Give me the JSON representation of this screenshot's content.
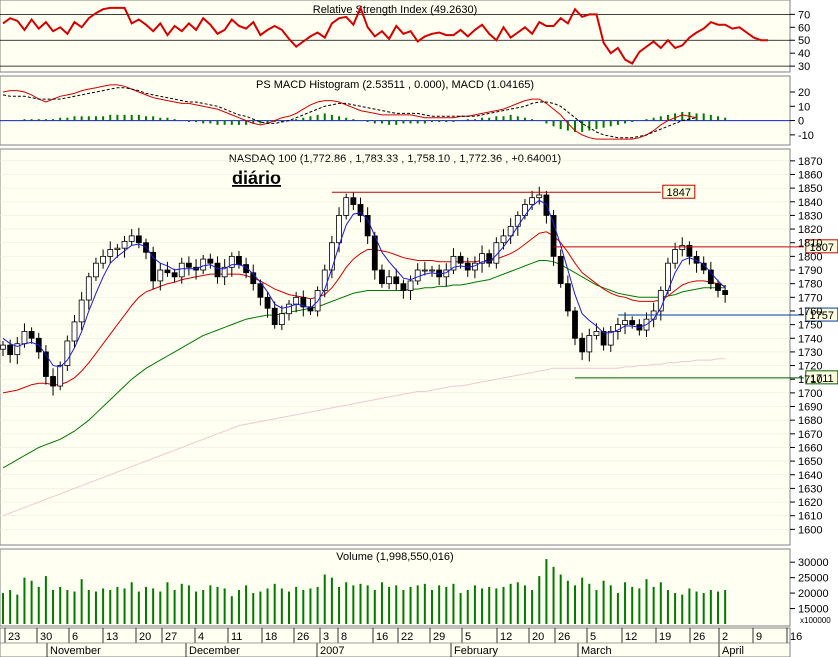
{
  "chart_data": [
    {
      "type": "line",
      "panel": "rsi",
      "title": "Relative Strength Index (49.2630)",
      "yticks": [
        30,
        40,
        50,
        60,
        70
      ],
      "ylim": [
        27,
        78
      ],
      "ref_lines": [
        30,
        50,
        70
      ],
      "series": [
        {
          "values": [
            63,
            67,
            65,
            58,
            66,
            59,
            64,
            57,
            60,
            55,
            64,
            60,
            67,
            71,
            74,
            75,
            75,
            75,
            63,
            66,
            62,
            57,
            63,
            54,
            61,
            57,
            63,
            58,
            67,
            62,
            55,
            58,
            66,
            61,
            59,
            64,
            54,
            58,
            61,
            58,
            51,
            45,
            49,
            53,
            56,
            52,
            63,
            67,
            68,
            62,
            75,
            60,
            53,
            57,
            51,
            61,
            55,
            57,
            49,
            53,
            55,
            56,
            54,
            54,
            58,
            53,
            58,
            62,
            55,
            50,
            60,
            52,
            56,
            60,
            55,
            64,
            61,
            61,
            67,
            63,
            74,
            68,
            70,
            70,
            48,
            40,
            44,
            35,
            32,
            41,
            45,
            49,
            44,
            50,
            44,
            46,
            52,
            56,
            59,
            64,
            62,
            62,
            59,
            60,
            56,
            52,
            50,
            50
          ]
        }
      ]
    },
    {
      "type": "line",
      "panel": "macd",
      "title": "PS MACD Histogram (2.53511 , 0.000), MACD (1.04165)",
      "yticks": [
        -10,
        0,
        10,
        20
      ],
      "ylim": [
        -15,
        27
      ],
      "series": [
        {
          "values": [
            20,
            21,
            21,
            20,
            18,
            15,
            13,
            15,
            17,
            18,
            19,
            21,
            22,
            23,
            24,
            25,
            25,
            24,
            22,
            20,
            18,
            16,
            15,
            14,
            13,
            12,
            12,
            11,
            10,
            9,
            8,
            6,
            4,
            2,
            0,
            -2,
            -3,
            -2,
            0,
            2,
            3,
            5,
            8,
            11,
            13,
            14,
            14,
            13,
            11,
            9,
            7,
            6,
            5,
            4,
            4,
            4,
            4,
            4,
            3,
            2,
            2,
            2,
            2,
            2,
            3,
            3,
            4,
            5,
            6,
            7,
            8,
            10,
            12,
            14,
            15,
            15,
            12,
            8,
            4,
            -2,
            -7,
            -10,
            -12,
            -13,
            -13,
            -13,
            -13,
            -13,
            -13,
            -12,
            -10,
            -7,
            -3,
            0,
            2,
            4,
            3,
            2
          ]
        },
        {
          "values": [
            18,
            17,
            17,
            17,
            16,
            15,
            15,
            15,
            15,
            16,
            17,
            18,
            19,
            20,
            21,
            22,
            23,
            23,
            22,
            21,
            19,
            18,
            17,
            16,
            15,
            14,
            13,
            13,
            12,
            11,
            10,
            8,
            6,
            4,
            3,
            1,
            -1,
            -2,
            -2,
            -1,
            0,
            2,
            4,
            6,
            8,
            10,
            11,
            12,
            12,
            11,
            10,
            9,
            8,
            7,
            6,
            5,
            5,
            5,
            5,
            4,
            3,
            3,
            3,
            3,
            3,
            3,
            3,
            4,
            5,
            6,
            7,
            8,
            9,
            10,
            12,
            13,
            13,
            12,
            10,
            6,
            2,
            -2,
            -5,
            -8,
            -10,
            -11,
            -12,
            -12,
            -12,
            -11,
            -10,
            -8,
            -6,
            -4,
            -2,
            0,
            1,
            2
          ]
        }
      ],
      "histogram": [
        0,
        0,
        0,
        1,
        1,
        1,
        1,
        1,
        2,
        2,
        3,
        3,
        3,
        3,
        3,
        4,
        4,
        4,
        4,
        4,
        3,
        3,
        2,
        2,
        1,
        0,
        -1,
        -1,
        -2,
        -2,
        -3,
        -3,
        -3,
        -3,
        -3,
        -2,
        -2,
        -2,
        -1,
        -1,
        0,
        1,
        2,
        3,
        4,
        5,
        4,
        3,
        2,
        1,
        0,
        -1,
        -2,
        -2,
        -3,
        -3,
        -2,
        -2,
        -2,
        -2,
        -1,
        -1,
        -1,
        -1,
        0,
        1,
        1,
        2,
        2,
        3,
        3,
        4,
        3,
        2,
        1,
        0,
        -2,
        -4,
        -6,
        -7,
        -8,
        -8,
        -7,
        -6,
        -5,
        -4,
        -3,
        -2,
        -1,
        0,
        1,
        2,
        3,
        4,
        5,
        6,
        6,
        5,
        5,
        4,
        3,
        2
      ]
    },
    {
      "type": "candlestick",
      "panel": "price",
      "title": "NASDAQ 100 (1,772.86 , 1,783.33 , 1,758.10 , 1,772.36 , +0.64001)",
      "yticks": [
        1600,
        1610,
        1620,
        1630,
        1640,
        1650,
        1660,
        1670,
        1680,
        1690,
        1700,
        1710,
        1720,
        1730,
        1740,
        1750,
        1760,
        1770,
        1780,
        1790,
        1800,
        1810,
        1820,
        1830,
        1840,
        1850,
        1860,
        1870
      ],
      "ylim": [
        1590,
        1875
      ],
      "closes": [
        1735,
        1728,
        1736,
        1745,
        1740,
        1730,
        1712,
        1705,
        1720,
        1738,
        1752,
        1768,
        1785,
        1795,
        1800,
        1805,
        1806,
        1811,
        1815,
        1810,
        1803,
        1782,
        1790,
        1788,
        1785,
        1795,
        1792,
        1790,
        1798,
        1795,
        1785,
        1792,
        1800,
        1794,
        1788,
        1780,
        1770,
        1762,
        1750,
        1758,
        1765,
        1770,
        1763,
        1760,
        1775,
        1790,
        1810,
        1830,
        1843,
        1838,
        1830,
        1815,
        1790,
        1780,
        1785,
        1780,
        1775,
        1782,
        1790,
        1790,
        1790,
        1785,
        1790,
        1800,
        1795,
        1790,
        1795,
        1802,
        1795,
        1810,
        1815,
        1822,
        1830,
        1838,
        1843,
        1845,
        1830,
        1800,
        1780,
        1760,
        1740,
        1730,
        1742,
        1745,
        1735,
        1745,
        1750,
        1753,
        1750,
        1746,
        1754,
        1760,
        1775,
        1795,
        1805,
        1808,
        1800,
        1795,
        1790,
        1780,
        1775,
        1772
      ],
      "ma_fast": [
        1740,
        1736,
        1734,
        1736,
        1737,
        1735,
        1728,
        1720,
        1719,
        1724,
        1733,
        1745,
        1760,
        1773,
        1785,
        1795,
        1800,
        1804,
        1808,
        1809,
        1807,
        1799,
        1795,
        1793,
        1790,
        1791,
        1791,
        1791,
        1793,
        1794,
        1791,
        1791,
        1794,
        1794,
        1792,
        1787,
        1781,
        1774,
        1765,
        1762,
        1763,
        1765,
        1764,
        1762,
        1767,
        1776,
        1791,
        1808,
        1823,
        1831,
        1832,
        1827,
        1815,
        1803,
        1796,
        1790,
        1784,
        1783,
        1785,
        1787,
        1788,
        1787,
        1788,
        1792,
        1793,
        1792,
        1793,
        1796,
        1796,
        1801,
        1807,
        1814,
        1822,
        1830,
        1837,
        1841,
        1838,
        1824,
        1808,
        1790,
        1772,
        1758,
        1753,
        1749,
        1744,
        1744,
        1746,
        1749,
        1749,
        1748,
        1750,
        1754,
        1762,
        1775,
        1788,
        1797,
        1799,
        1797,
        1794,
        1788,
        1782,
        1777
      ],
      "ma_mid": [
        1700,
        1701,
        1702,
        1704,
        1706,
        1707,
        1707,
        1706,
        1706,
        1708,
        1711,
        1716,
        1722,
        1729,
        1736,
        1743,
        1750,
        1757,
        1764,
        1770,
        1774,
        1776,
        1778,
        1780,
        1781,
        1783,
        1784,
        1785,
        1786,
        1787,
        1787,
        1787,
        1787,
        1787,
        1786,
        1784,
        1782,
        1779,
        1776,
        1774,
        1772,
        1771,
        1770,
        1769,
        1770,
        1772,
        1777,
        1784,
        1792,
        1798,
        1802,
        1805,
        1805,
        1804,
        1803,
        1801,
        1799,
        1798,
        1797,
        1797,
        1797,
        1796,
        1796,
        1796,
        1796,
        1796,
        1796,
        1797,
        1797,
        1798,
        1800,
        1802,
        1805,
        1809,
        1813,
        1817,
        1818,
        1815,
        1810,
        1803,
        1795,
        1788,
        1784,
        1780,
        1776,
        1773,
        1771,
        1770,
        1768,
        1767,
        1767,
        1767,
        1768,
        1771,
        1775,
        1779,
        1781,
        1782,
        1782,
        1781,
        1780,
        1778
      ],
      "ma_slow": [
        1645,
        1648,
        1651,
        1654,
        1657,
        1660,
        1662,
        1664,
        1666,
        1669,
        1672,
        1676,
        1680,
        1685,
        1690,
        1695,
        1700,
        1705,
        1710,
        1714,
        1718,
        1721,
        1724,
        1727,
        1730,
        1733,
        1736,
        1739,
        1742,
        1744,
        1746,
        1748,
        1750,
        1752,
        1754,
        1755,
        1756,
        1757,
        1757,
        1758,
        1759,
        1760,
        1761,
        1762,
        1763,
        1765,
        1767,
        1769,
        1771,
        1773,
        1774,
        1775,
        1775,
        1775,
        1775,
        1775,
        1775,
        1776,
        1776,
        1777,
        1777,
        1778,
        1778,
        1779,
        1779,
        1780,
        1781,
        1782,
        1783,
        1785,
        1787,
        1789,
        1791,
        1793,
        1795,
        1797,
        1797,
        1796,
        1794,
        1791,
        1788,
        1785,
        1782,
        1779,
        1777,
        1775,
        1773,
        1772,
        1771,
        1770,
        1770,
        1770,
        1770,
        1771,
        1772,
        1774,
        1775,
        1776,
        1777,
        1777,
        1777,
        1777
      ],
      "ma_long": [
        1610,
        1612,
        1614,
        1616,
        1618,
        1620,
        1622,
        1624,
        1626,
        1628,
        1630,
        1632,
        1634,
        1636,
        1638,
        1640,
        1642,
        1644,
        1646,
        1648,
        1650,
        1652,
        1654,
        1656,
        1658,
        1660,
        1662,
        1664,
        1666,
        1668,
        1670,
        1672,
        1674,
        1676,
        1677,
        1678,
        1679,
        1680,
        1681,
        1682,
        1683,
        1684,
        1685,
        1686,
        1687,
        1688,
        1689,
        1690,
        1691,
        1692,
        1693,
        1694,
        1695,
        1696,
        1697,
        1698,
        1699,
        1700,
        1701,
        1701,
        1702,
        1703,
        1704,
        1705,
        1705,
        1706,
        1707,
        1708,
        1709,
        1710,
        1711,
        1712,
        1713,
        1714,
        1715,
        1716,
        1717,
        1718,
        1718,
        1718,
        1718,
        1718,
        1718,
        1718,
        1718,
        1718,
        1718,
        1719,
        1719,
        1720,
        1720,
        1721,
        1721,
        1722,
        1722,
        1723,
        1723,
        1724,
        1724,
        1724,
        1725,
        1725
      ],
      "levels": [
        {
          "label": "1847",
          "value": 1847,
          "color": "#c00000",
          "from": 46,
          "to": 92
        },
        {
          "label": "1807",
          "value": 1807,
          "color": "#c00000",
          "from": 77,
          "to": 112
        },
        {
          "label": "1757",
          "value": 1757,
          "color": "#003aa0",
          "from": 86,
          "to": 112
        },
        {
          "label": "1711",
          "value": 1711,
          "color": "#006000",
          "from": 80,
          "to": 112
        }
      ],
      "annotation": "diário"
    },
    {
      "type": "bar",
      "panel": "volume",
      "title": "Volume (1,998,550,016)",
      "yticks": [
        15000,
        20000,
        25000,
        30000
      ],
      "tick_labels": [
        "15000",
        "20000",
        "25000",
        "30000"
      ],
      "unit_label": "x100000",
      "ylim": [
        10000,
        32000
      ],
      "values": [
        20000,
        21000,
        19500,
        25000,
        24000,
        22000,
        25500,
        21000,
        22000,
        21000,
        20500,
        24500,
        21000,
        20500,
        21500,
        21000,
        22000,
        21500,
        23500,
        20500,
        22000,
        21500,
        20500,
        23500,
        21000,
        23000,
        22500,
        20500,
        21000,
        22500,
        22000,
        21500,
        19000,
        21000,
        22500,
        20000,
        20500,
        21500,
        23000,
        21500,
        20500,
        22000,
        21000,
        21500,
        22000,
        26000,
        25000,
        22000,
        23500,
        22500,
        23000,
        22500,
        21000,
        23500,
        22000,
        22500,
        21000,
        22000,
        22500,
        23000,
        21000,
        22500,
        22000,
        23000,
        20000,
        21000,
        22500,
        21500,
        22000,
        21500,
        22000,
        23000,
        23500,
        22500,
        21000,
        25500,
        31000,
        28500,
        26000,
        24000,
        22500,
        25000,
        23000,
        21000,
        24000,
        22500,
        20000,
        23500,
        22000,
        21500,
        24500,
        22000,
        23500,
        21000,
        20000,
        19500,
        21500,
        20500,
        20000,
        21000,
        20500,
        21000
      ]
    }
  ],
  "x_axis": {
    "day_ticks": [
      "23",
      "30",
      "6",
      "13",
      "20",
      "27",
      "4",
      "11",
      "18",
      "26",
      "3",
      "8",
      "16",
      "22",
      "29",
      "5",
      "12",
      "20",
      "26",
      "5",
      "12",
      "19",
      "26",
      "2",
      "9",
      "16"
    ],
    "month_labels": [
      "November",
      "December",
      "2007",
      "February",
      "March",
      "April"
    ]
  },
  "colors": {
    "panel_bg": "#fffff2",
    "grid": "#c8c8c8",
    "rsi": "#d40000",
    "macd": "#d40000",
    "signal": "#000000",
    "hist_pos": "#007a00",
    "hist_neg": "#007a00",
    "candle": "#000000",
    "ma_fast": "#1a1ae0",
    "ma_mid": "#d40000",
    "ma_slow": "#007a00",
    "ma_long": "#f2c8d4",
    "volume": "#007a00"
  }
}
